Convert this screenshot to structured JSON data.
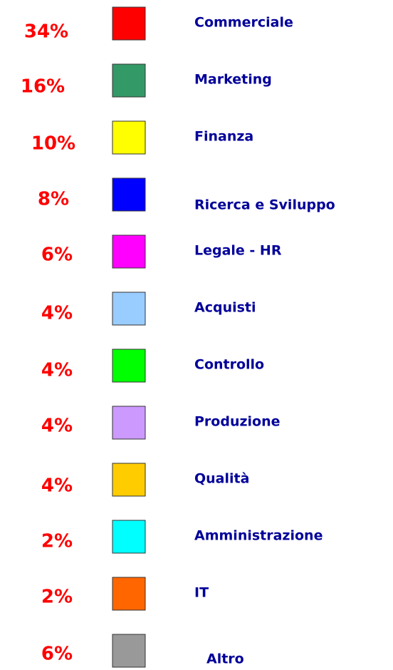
{
  "items": [
    {
      "value_label": "34%",
      "label": "Commerciale",
      "color": "#ff0000"
    },
    {
      "value_label": "16%",
      "label": "Marketing",
      "color": "#339966"
    },
    {
      "value_label": "10%",
      "label": "Finanza",
      "color": "#ffff00"
    },
    {
      "value_label": "8%",
      "label": "Ricerca e Sviluppo",
      "color": "#0000ff"
    },
    {
      "value_label": "6%",
      "label": "Legale - HR",
      "color": "#ff00ff"
    },
    {
      "value_label": "4%",
      "label": "Acquisti",
      "color": "#99ccff"
    },
    {
      "value_label": "4%",
      "label": "Controllo",
      "color": "#00ff00"
    },
    {
      "value_label": "4%",
      "label": "Produzione",
      "color": "#cc99ff"
    },
    {
      "value_label": "4%",
      "label": "Qualità",
      "color": "#ffcc00"
    },
    {
      "value_label": "2%",
      "label": "Amministrazione",
      "color": "#00ffff"
    },
    {
      "value_label": "2%",
      "label": "IT",
      "color": "#ff6600"
    },
    {
      "value_label": "6%",
      "label": "Altro",
      "color": "#999999"
    }
  ]
}
